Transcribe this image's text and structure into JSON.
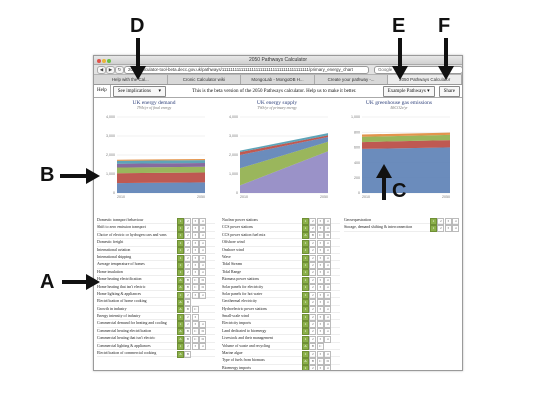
{
  "browser": {
    "window_title": "2050 Pathways Calculator",
    "url": "2050-calculator-tool-beta.decc.gov.uk/pathways/11111111111111111111111111111111111111111/primary_energy_chart",
    "search_placeholder": "Google",
    "tabs": [
      "Help with the Cal...",
      "Cronic Calculator wiki",
      "MongoLab - MongoDB H...",
      "Create your pathway -...",
      "2050 Pathways Calculator"
    ]
  },
  "toolbar": {
    "help": "Help",
    "implications": "See implications",
    "implications_caret": "▾",
    "beta_message": "This is the beta version of the 2050 Pathways calculator. Help us to make it better.",
    "examples": "Example Pathways",
    "examples_caret": "▾",
    "share": "Share"
  },
  "charts": {
    "demand": {
      "title": "UK energy demand",
      "subtitle": "TWh/yr of final energy"
    },
    "supply": {
      "title": "UK energy supply",
      "subtitle": "TWh/yr of primary energy"
    },
    "ghg": {
      "title": "UK greenhouse gas emissions",
      "subtitle": "MtCO2e/yr"
    }
  },
  "chart_data": [
    {
      "type": "area",
      "title": "UK energy demand",
      "x": [
        "2010",
        "2050"
      ],
      "yticks": [
        "0",
        "1,000",
        "2,000",
        "3,000",
        "4,000"
      ],
      "series": [
        {
          "color": "#5b7fb5",
          "values": [
            520,
            560
          ]
        },
        {
          "color": "#b8473f",
          "values": [
            520,
            520
          ]
        },
        {
          "color": "#8fae4a",
          "values": [
            300,
            300
          ]
        },
        {
          "color": "#7a5a95",
          "values": [
            200,
            200
          ]
        },
        {
          "color": "#4b9ab0",
          "values": [
            150,
            150
          ]
        },
        {
          "color": "#e08a3a",
          "values": [
            60,
            60
          ]
        }
      ]
    },
    {
      "type": "area",
      "title": "UK energy supply",
      "x": [
        "2010",
        "2050"
      ],
      "yticks": [
        "0",
        "1,000",
        "2,000",
        "3,000",
        "4,000"
      ],
      "series": [
        {
          "color": "#8f86c2",
          "values": [
            400,
            2200
          ]
        },
        {
          "color": "#8fae4a",
          "values": [
            900,
            500
          ]
        },
        {
          "color": "#5b7fb5",
          "values": [
            700,
            250
          ]
        },
        {
          "color": "#b8473f",
          "values": [
            150,
            80
          ]
        },
        {
          "color": "#4b9ab0",
          "values": [
            80,
            120
          ]
        }
      ]
    },
    {
      "type": "area",
      "title": "UK greenhouse gas emissions",
      "x": [
        "2010",
        "2050"
      ],
      "yticks": [
        "0",
        "200",
        "400",
        "600",
        "800",
        "1,000"
      ],
      "series": [
        {
          "color": "#5b7fb5",
          "values": [
            580,
            600
          ]
        },
        {
          "color": "#b8473f",
          "values": [
            90,
            95
          ]
        },
        {
          "color": "#8fae4a",
          "values": [
            70,
            70
          ]
        },
        {
          "color": "#e08a3a",
          "values": [
            30,
            30
          ]
        }
      ]
    }
  ],
  "levers": {
    "demand": [
      {
        "label": "Domestic transport behaviour",
        "sel": 1,
        "letters": false
      },
      {
        "label": "Shift to zero emission transport",
        "sel": 1,
        "letters": false
      },
      {
        "label": "Choice of electric or hydrogen cars and vans",
        "sel": 1,
        "letters": false
      },
      {
        "label": "Domestic freight",
        "sel": 1,
        "letters": false
      },
      {
        "label": "International aviation",
        "sel": 1,
        "letters": false
      },
      {
        "label": "International shipping",
        "sel": 1,
        "letters": false
      },
      {
        "label": "Average temperature of homes",
        "sel": 1,
        "letters": false
      },
      {
        "label": "Home insulation",
        "sel": 1,
        "letters": false
      },
      {
        "label": "Home heating electrification",
        "sel": 1,
        "letters": true
      },
      {
        "label": "Home heating that isn't electric",
        "sel": 1,
        "letters": true
      },
      {
        "label": "Home lighting & appliances",
        "sel": 1,
        "letters": false
      },
      {
        "label": "Electrification of home cooking",
        "sel": 1,
        "letters": true,
        "count": 2
      },
      {
        "label": "Growth in industry",
        "sel": 1,
        "letters": true,
        "count": 3
      },
      {
        "label": "Energy intensity of industry",
        "sel": 1,
        "letters": false,
        "count": 3
      },
      {
        "label": "Commercial demand for heating and cooling",
        "sel": 1,
        "letters": false
      },
      {
        "label": "Commercial heating electrification",
        "sel": 1,
        "letters": true
      },
      {
        "label": "Commercial heating that isn't electric",
        "sel": 1,
        "letters": true
      },
      {
        "label": "Commercial lighting & appliances",
        "sel": 1,
        "letters": false
      },
      {
        "label": "Electrification of commercial cooking",
        "sel": 1,
        "letters": true,
        "count": 2
      }
    ],
    "supply": [
      {
        "label": "Nuclear power stations",
        "sel": 1,
        "letters": false
      },
      {
        "label": "CCS power stations",
        "sel": 1,
        "letters": false
      },
      {
        "label": "CCS power station fuel mix",
        "sel": 1,
        "letters": true
      },
      {
        "label": "Offshore wind",
        "sel": 1,
        "letters": false
      },
      {
        "label": "Onshore wind",
        "sel": 1,
        "letters": false
      },
      {
        "label": "Wave",
        "sel": 1,
        "letters": false
      },
      {
        "label": "Tidal Stream",
        "sel": 1,
        "letters": false
      },
      {
        "label": "Tidal Range",
        "sel": 1,
        "letters": false
      },
      {
        "label": "Biomass power stations",
        "sel": 1,
        "letters": false
      },
      {
        "label": "Solar panels for electricity",
        "sel": 1,
        "letters": false
      },
      {
        "label": "Solar panels for hot water",
        "sel": 1,
        "letters": false
      },
      {
        "label": "Geothermal electricity",
        "sel": 1,
        "letters": false
      },
      {
        "label": "Hydroelectric power stations",
        "sel": 1,
        "letters": false
      },
      {
        "label": "Small-scale wind",
        "sel": 1,
        "letters": false
      },
      {
        "label": "Electricity imports",
        "sel": 1,
        "letters": false
      },
      {
        "label": "Land dedicated to bioenergy",
        "sel": 1,
        "letters": false
      },
      {
        "label": "Livestock and their management",
        "sel": 1,
        "letters": false
      },
      {
        "label": "Volume of waste and recycling",
        "sel": 1,
        "letters": true,
        "count": 3
      },
      {
        "label": "Marine algae",
        "sel": 1,
        "letters": false
      },
      {
        "label": "Type of fuels from biomass",
        "sel": 1,
        "letters": true
      },
      {
        "label": "Bioenergy imports",
        "sel": 1,
        "letters": false
      }
    ],
    "other": [
      {
        "label": "Geosequestration",
        "sel": 1,
        "letters": false
      },
      {
        "label": "Storage, demand shifting & interconnection",
        "sel": 1,
        "letters": false
      }
    ]
  },
  "annotations": {
    "A": "A",
    "B": "B",
    "C": "C",
    "D": "D",
    "E": "E",
    "F": "F"
  }
}
